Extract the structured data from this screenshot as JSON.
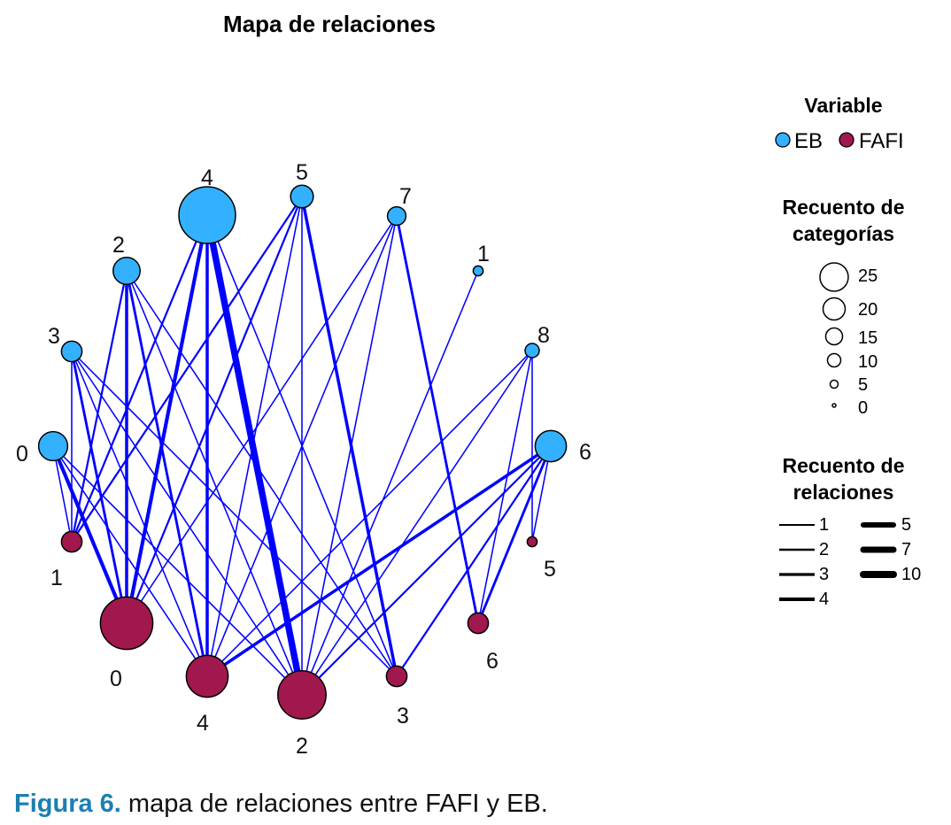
{
  "chart_data": {
    "type": "network",
    "title": "Mapa de relaciones",
    "colors": {
      "EB": "#33b1ff",
      "FAFI": "#a0184e",
      "edge": "#0000ff"
    },
    "nodes": [
      {
        "id": "EB4",
        "group": "EB",
        "label": "4",
        "count": 25
      },
      {
        "id": "EB5",
        "group": "EB",
        "label": "5",
        "count": 9
      },
      {
        "id": "EB7",
        "group": "EB",
        "label": "7",
        "count": 7
      },
      {
        "id": "EB1",
        "group": "EB",
        "label": "1",
        "count": 3
      },
      {
        "id": "EB2",
        "group": "EB",
        "label": "2",
        "count": 11
      },
      {
        "id": "EB8",
        "group": "EB",
        "label": "8",
        "count": 5
      },
      {
        "id": "EB3",
        "group": "EB",
        "label": "3",
        "count": 8
      },
      {
        "id": "EB0",
        "group": "EB",
        "label": "0",
        "count": 12
      },
      {
        "id": "EB6",
        "group": "EB",
        "label": "6",
        "count": 13
      },
      {
        "id": "FAFI1",
        "group": "FAFI",
        "label": "1",
        "count": 8
      },
      {
        "id": "FAFI5",
        "group": "FAFI",
        "label": "5",
        "count": 3
      },
      {
        "id": "FAFI0",
        "group": "FAFI",
        "label": "0",
        "count": 23
      },
      {
        "id": "FAFI6",
        "group": "FAFI",
        "label": "6",
        "count": 8
      },
      {
        "id": "FAFI4",
        "group": "FAFI",
        "label": "4",
        "count": 18
      },
      {
        "id": "FAFI3",
        "group": "FAFI",
        "label": "3",
        "count": 8
      },
      {
        "id": "FAFI2",
        "group": "FAFI",
        "label": "2",
        "count": 21
      }
    ],
    "edges": [
      {
        "source": "EB4",
        "target": "FAFI2",
        "weight": 10
      },
      {
        "source": "EB4",
        "target": "FAFI4",
        "weight": 4
      },
      {
        "source": "EB4",
        "target": "FAFI0",
        "weight": 5
      },
      {
        "source": "EB4",
        "target": "FAFI1",
        "weight": 2
      },
      {
        "source": "EB4",
        "target": "FAFI3",
        "weight": 1
      },
      {
        "source": "EB5",
        "target": "FAFI3",
        "weight": 4
      },
      {
        "source": "EB5",
        "target": "FAFI2",
        "weight": 1
      },
      {
        "source": "EB5",
        "target": "FAFI0",
        "weight": 2
      },
      {
        "source": "EB5",
        "target": "FAFI4",
        "weight": 1
      },
      {
        "source": "EB5",
        "target": "FAFI1",
        "weight": 2
      },
      {
        "source": "EB7",
        "target": "FAFI6",
        "weight": 3
      },
      {
        "source": "EB7",
        "target": "FAFI0",
        "weight": 1
      },
      {
        "source": "EB7",
        "target": "FAFI4",
        "weight": 1
      },
      {
        "source": "EB7",
        "target": "FAFI2",
        "weight": 1
      },
      {
        "source": "EB1",
        "target": "FAFI2",
        "weight": 1
      },
      {
        "source": "EB8",
        "target": "FAFI5",
        "weight": 1
      },
      {
        "source": "EB8",
        "target": "FAFI6",
        "weight": 1
      },
      {
        "source": "EB8",
        "target": "FAFI4",
        "weight": 1
      },
      {
        "source": "EB8",
        "target": "FAFI2",
        "weight": 1
      },
      {
        "source": "EB6",
        "target": "FAFI4",
        "weight": 4
      },
      {
        "source": "EB6",
        "target": "FAFI2",
        "weight": 2
      },
      {
        "source": "EB6",
        "target": "FAFI3",
        "weight": 2
      },
      {
        "source": "EB6",
        "target": "FAFI6",
        "weight": 3
      },
      {
        "source": "EB6",
        "target": "FAFI5",
        "weight": 1
      },
      {
        "source": "EB2",
        "target": "FAFI0",
        "weight": 4
      },
      {
        "source": "EB2",
        "target": "FAFI4",
        "weight": 3
      },
      {
        "source": "EB2",
        "target": "FAFI2",
        "weight": 1
      },
      {
        "source": "EB2",
        "target": "FAFI3",
        "weight": 1
      },
      {
        "source": "EB2",
        "target": "FAFI1",
        "weight": 2
      },
      {
        "source": "EB3",
        "target": "FAFI0",
        "weight": 3
      },
      {
        "source": "EB3",
        "target": "FAFI1",
        "weight": 1
      },
      {
        "source": "EB3",
        "target": "FAFI4",
        "weight": 1
      },
      {
        "source": "EB3",
        "target": "FAFI2",
        "weight": 1
      },
      {
        "source": "EB3",
        "target": "FAFI3",
        "weight": 1
      },
      {
        "source": "EB0",
        "target": "FAFI0",
        "weight": 5
      },
      {
        "source": "EB0",
        "target": "FAFI1",
        "weight": 1
      },
      {
        "source": "EB0",
        "target": "FAFI4",
        "weight": 1
      },
      {
        "source": "EB0",
        "target": "FAFI2",
        "weight": 1
      }
    ]
  },
  "legend": {
    "variable_title": "Variable",
    "variable_items": [
      "EB",
      "FAFI"
    ],
    "size_title_1": "Recuento de",
    "size_title_2": "categorías",
    "size_items": [
      "25",
      "20",
      "15",
      "10",
      "5",
      "0"
    ],
    "edge_title_1": "Recuento de",
    "edge_title_2": "relaciones",
    "edge_items": [
      "1",
      "2",
      "3",
      "4",
      "5",
      "7",
      "10"
    ]
  },
  "caption": {
    "label": "Figura 6.",
    "text": " mapa de relaciones entre FAFI y EB."
  }
}
